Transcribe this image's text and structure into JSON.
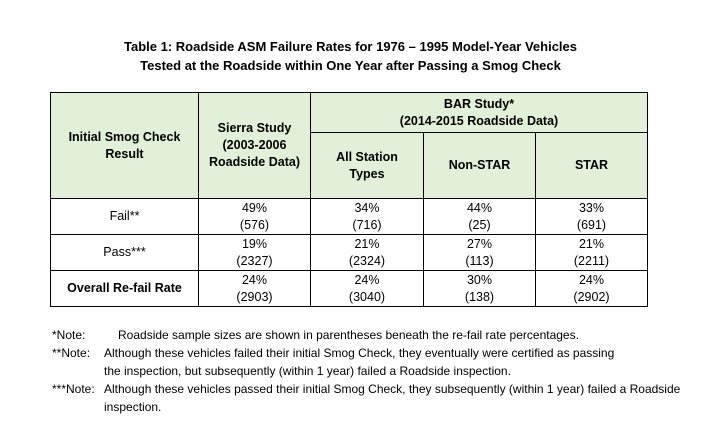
{
  "title": {
    "line1": "Table 1: Roadside ASM Failure Rates for 1976 – 1995 Model-Year Vehicles",
    "line2": "Tested at the Roadside within One Year after Passing a Smog Check"
  },
  "table": {
    "header": {
      "col_initial": [
        "Initial Smog Check",
        "Result"
      ],
      "col_sierra": [
        "Sierra Study",
        "(2003-2006",
        "Roadside Data)"
      ],
      "bar_group": [
        "BAR Study*",
        "(2014-2015 Roadside Data)"
      ],
      "col_all": [
        "All Station",
        "Types"
      ],
      "col_nonstar": "Non-STAR",
      "col_star": "STAR"
    },
    "rows": [
      {
        "label": "Fail**",
        "sierra": [
          "49%",
          "(576)"
        ],
        "all": [
          "34%",
          "(716)"
        ],
        "nonstar": [
          "44%",
          "(25)"
        ],
        "star": [
          "33%",
          "(691)"
        ]
      },
      {
        "label": "Pass***",
        "sierra": [
          "19%",
          "(2327)"
        ],
        "all": [
          "21%",
          "(2324)"
        ],
        "nonstar": [
          "27%",
          "(113)"
        ],
        "star": [
          "21%",
          "(2211)"
        ]
      },
      {
        "label": "Overall Re-fail Rate",
        "sierra": [
          "24%",
          "(2903)"
        ],
        "all": [
          "24%",
          "(3040)"
        ],
        "nonstar": [
          "30%",
          "(138)"
        ],
        "star": [
          "24%",
          "(2902)"
        ]
      }
    ]
  },
  "notes": [
    {
      "key": "*Note:",
      "text": "Roadside sample sizes are shown in parentheses beneath the re-fail rate percentages."
    },
    {
      "key": "**Note:",
      "text": "Although these vehicles failed their initial Smog Check, they eventually were certified as passing",
      "cont": "the inspection, but subsequently (within 1 year) failed a Roadside inspection."
    },
    {
      "key": "***Note:",
      "text": "Although these vehicles passed their initial Smog Check, they subsequently (within 1 year) failed a Roadside",
      "cont": "inspection."
    }
  ]
}
